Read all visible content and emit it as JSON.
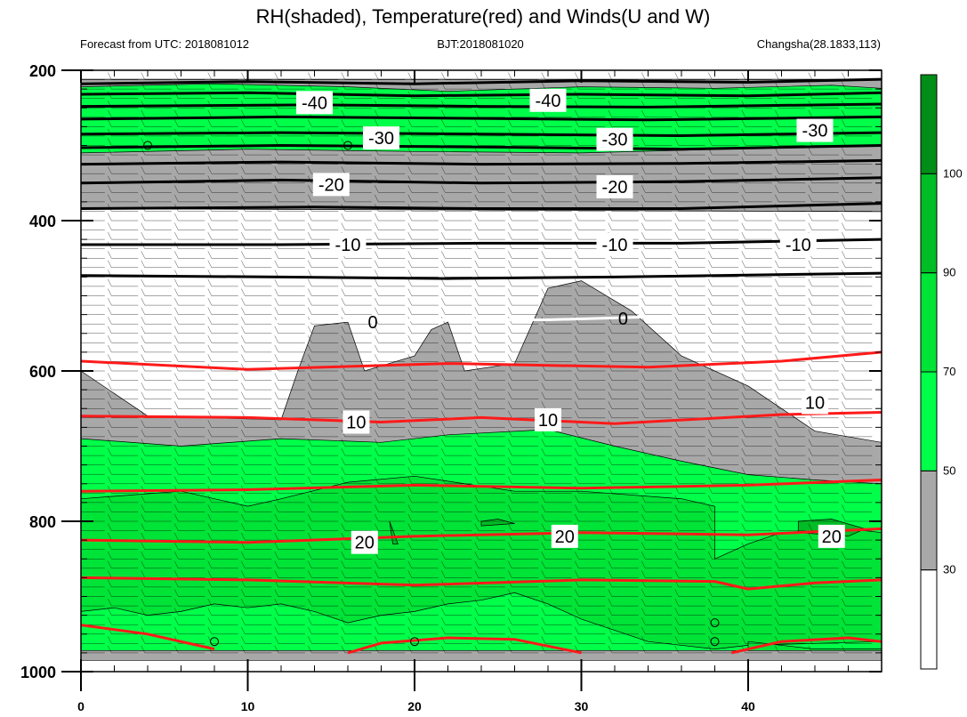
{
  "chart_data": {
    "type": "contour",
    "title": "RH(shaded), Temperature(red) and Winds(U and W)",
    "subtitle_left": "Forecast from UTC: 2018081012",
    "subtitle_center": "BJT:2018081020",
    "subtitle_right": "Changsha(28.1833,113)",
    "x": {
      "ticks": [
        0,
        10,
        20,
        30,
        40
      ],
      "range": [
        0,
        48
      ]
    },
    "y": {
      "ticks": [
        200,
        400,
        600,
        800,
        1000
      ],
      "range": [
        200,
        1000
      ],
      "inverted": true
    },
    "colorbar": {
      "labels": [
        "30",
        "50",
        "70",
        "90",
        "100"
      ],
      "bins": [
        {
          "color": "#ffffff"
        },
        {
          "color": "#a8a8a8"
        },
        {
          "color": "#00ff49"
        },
        {
          "color": "#00e337"
        },
        {
          "color": "#00bc25"
        },
        {
          "color": "#008e19"
        }
      ]
    },
    "rh_regions": [
      {
        "level": "gray",
        "color": "#a8a8a8",
        "points": [
          [
            0,
            212
          ],
          [
            48,
            212
          ],
          [
            48,
            388
          ],
          [
            0,
            384
          ]
        ]
      },
      {
        "level": "green",
        "color": "#00ff49",
        "points": [
          [
            0,
            222
          ],
          [
            8,
            218
          ],
          [
            16,
            222
          ],
          [
            22,
            228
          ],
          [
            30,
            222
          ],
          [
            38,
            224
          ],
          [
            45,
            220
          ],
          [
            48,
            224
          ],
          [
            48,
            300
          ],
          [
            40,
            304
          ],
          [
            30,
            310
          ],
          [
            20,
            308
          ],
          [
            10,
            305
          ],
          [
            0,
            310
          ]
        ]
      },
      {
        "level": "gray",
        "color": "#a8a8a8",
        "points": [
          [
            0,
            600
          ],
          [
            4,
            660
          ],
          [
            12,
            665
          ],
          [
            13,
            600
          ],
          [
            14,
            540
          ],
          [
            16,
            535
          ],
          [
            17,
            600
          ],
          [
            20,
            580
          ],
          [
            21,
            545
          ],
          [
            22,
            535
          ],
          [
            23,
            600
          ],
          [
            26,
            590
          ],
          [
            28,
            490
          ],
          [
            30,
            480
          ],
          [
            33,
            520
          ],
          [
            36,
            580
          ],
          [
            40,
            620
          ],
          [
            44,
            680
          ],
          [
            48,
            695
          ],
          [
            48,
            785
          ],
          [
            0,
            745
          ]
        ]
      },
      {
        "level": "green",
        "color": "#00ff49",
        "points": [
          [
            0,
            690
          ],
          [
            6,
            700
          ],
          [
            12,
            690
          ],
          [
            18,
            695
          ],
          [
            22,
            685
          ],
          [
            28,
            678
          ],
          [
            32,
            700
          ],
          [
            36,
            720
          ],
          [
            40,
            738
          ],
          [
            44,
            745
          ],
          [
            48,
            750
          ],
          [
            48,
            975
          ],
          [
            0,
            975
          ]
        ]
      },
      {
        "level": "green2",
        "color": "#00e337",
        "points": [
          [
            0,
            770
          ],
          [
            6,
            760
          ],
          [
            10,
            780
          ],
          [
            12,
            770
          ],
          [
            16,
            748
          ],
          [
            20,
            740
          ],
          [
            26,
            760
          ],
          [
            30,
            760
          ],
          [
            36,
            770
          ],
          [
            38,
            780
          ],
          [
            38,
            850
          ],
          [
            40,
            830
          ],
          [
            42,
            815
          ],
          [
            46,
            810
          ],
          [
            48,
            815
          ],
          [
            48,
            960
          ],
          [
            40,
            965
          ],
          [
            38,
            970
          ],
          [
            34,
            960
          ],
          [
            30,
            930
          ],
          [
            28,
            910
          ],
          [
            26,
            895
          ],
          [
            24,
            905
          ],
          [
            22,
            910
          ],
          [
            20,
            920
          ],
          [
            18,
            925
          ],
          [
            16,
            935
          ],
          [
            14,
            920
          ],
          [
            12,
            910
          ],
          [
            10,
            915
          ],
          [
            8,
            910
          ],
          [
            6,
            920
          ],
          [
            4,
            925
          ],
          [
            2,
            915
          ],
          [
            0,
            920
          ]
        ]
      },
      {
        "level": "green2",
        "color": "#00e337",
        "points": [
          [
            40,
            960
          ],
          [
            44,
            970
          ],
          [
            48,
            970
          ],
          [
            48,
            975
          ],
          [
            40,
            975
          ]
        ]
      },
      {
        "level": "green3",
        "color": "#00bc25",
        "points": [
          [
            24,
            800
          ],
          [
            25,
            797
          ],
          [
            26,
            803
          ],
          [
            24,
            806
          ]
        ]
      },
      {
        "level": "green3",
        "color": "#00bc25",
        "points": [
          [
            43,
            800
          ],
          [
            45,
            797
          ],
          [
            47,
            810
          ],
          [
            46,
            820
          ],
          [
            43,
            815
          ]
        ]
      },
      {
        "level": "green3",
        "color": "#00bc25",
        "points": [
          [
            18.5,
            800
          ],
          [
            19,
            830
          ],
          [
            18.7,
            830
          ]
        ]
      },
      {
        "level": "gray",
        "color": "#a8a8a8",
        "points": [
          [
            0,
            972
          ],
          [
            48,
            972
          ],
          [
            48,
            985
          ],
          [
            0,
            985
          ]
        ]
      }
    ],
    "temperature_contours": [
      {
        "value": -40,
        "color": "#000000",
        "points": [
          [
            0,
            218
          ],
          [
            10,
            215
          ],
          [
            20,
            218
          ],
          [
            30,
            214
          ],
          [
            40,
            216
          ],
          [
            48,
            212
          ]
        ]
      },
      {
        "value": -40,
        "color": "#000000",
        "points": [
          [
            0,
            232
          ],
          [
            10,
            230
          ],
          [
            20,
            234
          ],
          [
            30,
            232
          ],
          [
            40,
            234
          ],
          [
            48,
            230
          ]
        ]
      },
      {
        "value": -40,
        "color": "#000000",
        "points": [
          [
            0,
            248
          ],
          [
            14,
            246
          ],
          [
            24,
            248
          ],
          [
            34,
            249
          ],
          [
            48,
            245
          ]
        ]
      },
      {
        "value": -30,
        "color": "#000000",
        "points": [
          [
            0,
            265
          ],
          [
            12,
            262
          ],
          [
            24,
            264
          ],
          [
            34,
            266
          ],
          [
            48,
            262
          ]
        ]
      },
      {
        "value": -30,
        "color": "#000000",
        "points": [
          [
            0,
            285
          ],
          [
            12,
            283
          ],
          [
            24,
            285
          ],
          [
            36,
            287
          ],
          [
            48,
            283
          ]
        ]
      },
      {
        "value": -30,
        "color": "#000000",
        "points": [
          [
            0,
            303
          ],
          [
            12,
            300
          ],
          [
            24,
            302
          ],
          [
            36,
            305
          ],
          [
            48,
            300
          ]
        ]
      },
      {
        "value": -20,
        "color": "#000000",
        "points": [
          [
            0,
            325
          ],
          [
            12,
            322
          ],
          [
            24,
            325
          ],
          [
            36,
            324
          ],
          [
            48,
            320
          ]
        ]
      },
      {
        "value": -20,
        "color": "#000000",
        "points": [
          [
            0,
            350
          ],
          [
            12,
            346
          ],
          [
            24,
            350
          ],
          [
            36,
            348
          ],
          [
            48,
            343
          ]
        ]
      },
      {
        "value": -20,
        "color": "#000000",
        "points": [
          [
            0,
            384
          ],
          [
            14,
            382
          ],
          [
            24,
            384
          ],
          [
            36,
            384
          ],
          [
            48,
            377
          ]
        ]
      },
      {
        "value": -10,
        "color": "#000000",
        "points": [
          [
            0,
            432
          ],
          [
            12,
            432
          ],
          [
            24,
            430
          ],
          [
            36,
            430
          ],
          [
            48,
            425
          ]
        ]
      },
      {
        "value": -10,
        "color": "#000000",
        "points": [
          [
            0,
            473
          ],
          [
            12,
            475
          ],
          [
            22,
            477
          ],
          [
            32,
            475
          ],
          [
            48,
            470
          ]
        ]
      },
      {
        "value": 0,
        "color": "#ffffff",
        "points": [
          [
            10,
            535
          ],
          [
            16,
            533
          ],
          [
            22,
            532
          ],
          [
            28,
            532
          ],
          [
            34,
            528
          ]
        ]
      },
      {
        "value": 10,
        "color": "#ff1a1a",
        "points": [
          [
            0,
            587
          ],
          [
            10,
            598
          ],
          [
            22,
            590
          ],
          [
            34,
            595
          ],
          [
            42,
            587
          ],
          [
            48,
            575
          ]
        ]
      },
      {
        "value": 10,
        "color": "#ff1a1a",
        "points": [
          [
            0,
            660
          ],
          [
            10,
            662
          ],
          [
            18,
            668
          ],
          [
            24,
            662
          ],
          [
            32,
            670
          ],
          [
            42,
            658
          ],
          [
            48,
            655
          ]
        ]
      },
      {
        "value": 20,
        "color": "#ff1a1a",
        "points": [
          [
            0,
            760
          ],
          [
            10,
            758
          ],
          [
            20,
            752
          ],
          [
            30,
            756
          ],
          [
            40,
            752
          ],
          [
            48,
            745
          ]
        ]
      },
      {
        "value": 20,
        "color": "#ff1a1a",
        "points": [
          [
            0,
            825
          ],
          [
            10,
            828
          ],
          [
            20,
            820
          ],
          [
            30,
            815
          ],
          [
            40,
            818
          ],
          [
            48,
            810
          ]
        ]
      },
      {
        "value": 20,
        "color": "#ff1a1a",
        "points": [
          [
            0,
            875
          ],
          [
            10,
            878
          ],
          [
            20,
            885
          ],
          [
            30,
            878
          ],
          [
            38,
            880
          ],
          [
            40,
            890
          ],
          [
            44,
            882
          ],
          [
            48,
            878
          ]
        ]
      },
      {
        "value": 20,
        "color": "#ff1a1a",
        "points": [
          [
            0,
            938
          ],
          [
            4,
            950
          ],
          [
            8,
            970
          ]
        ]
      },
      {
        "value": 20,
        "color": "#ff1a1a",
        "points": [
          [
            16,
            975
          ],
          [
            18,
            962
          ],
          [
            22,
            955
          ],
          [
            26,
            957
          ],
          [
            30,
            975
          ]
        ]
      },
      {
        "value": 20,
        "color": "#ff1a1a",
        "points": [
          [
            39,
            975
          ],
          [
            42,
            960
          ],
          [
            46,
            955
          ],
          [
            48,
            960
          ]
        ]
      }
    ],
    "contour_labels": [
      {
        "text": "-40",
        "x": 14,
        "y": 243
      },
      {
        "text": "-40",
        "x": 28,
        "y": 240
      },
      {
        "text": "-30",
        "x": 18,
        "y": 290
      },
      {
        "text": "-30",
        "x": 32,
        "y": 292
      },
      {
        "text": "-30",
        "x": 44,
        "y": 280
      },
      {
        "text": "-20",
        "x": 15,
        "y": 352
      },
      {
        "text": "-20",
        "x": 32,
        "y": 355
      },
      {
        "text": "-10",
        "x": 16,
        "y": 432
      },
      {
        "text": "-10",
        "x": 32,
        "y": 432
      },
      {
        "text": "-10",
        "x": 43,
        "y": 432
      },
      {
        "text": "0",
        "x": 17.5,
        "y": 535,
        "white": true
      },
      {
        "text": "0",
        "x": 32.5,
        "y": 530,
        "white": true
      },
      {
        "text": "10",
        "x": 16.5,
        "y": 668
      },
      {
        "text": "10",
        "x": 28,
        "y": 665
      },
      {
        "text": "10",
        "x": 44,
        "y": 642
      },
      {
        "text": "20",
        "x": 17,
        "y": 828
      },
      {
        "text": "20",
        "x": 29,
        "y": 820
      },
      {
        "text": "20",
        "x": 45,
        "y": 820
      }
    ],
    "calm_circles": [
      {
        "x": 4,
        "y": 300
      },
      {
        "x": 16,
        "y": 300
      },
      {
        "x": 8,
        "y": 960
      },
      {
        "x": 20,
        "y": 960
      },
      {
        "x": 38,
        "y": 960
      },
      {
        "x": 38,
        "y": 935
      }
    ]
  }
}
